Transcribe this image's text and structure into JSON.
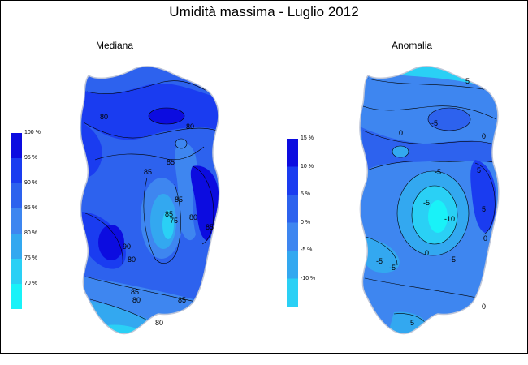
{
  "title": "Umidità massima - Luglio 2012",
  "panels": [
    {
      "subtitle": "Mediana",
      "legend": {
        "labels": [
          "100 %",
          "95 %",
          "90 %",
          "85 %",
          "80 %",
          "75 %",
          "70 %"
        ],
        "colors": [
          "#0c0ce0",
          "#1a3cf0",
          "#2d62ee",
          "#3e86f0",
          "#33a8f0",
          "#2ad0f5",
          "#19f2f8"
        ]
      },
      "contour_labels": [
        "80",
        "80",
        "85",
        "85",
        "85",
        "85",
        "75",
        "80",
        "85",
        "90",
        "80",
        "85",
        "80",
        "85",
        "80"
      ]
    },
    {
      "subtitle": "Anomalia",
      "legend": {
        "labels": [
          "15 %",
          "10 %",
          "5 %",
          "0 %",
          "-5 %",
          "-10 %"
        ],
        "colors": [
          "#0c0ce0",
          "#1a3cf0",
          "#2d62ee",
          "#3e86f0",
          "#33a8f0",
          "#2ad0f5",
          "#19f2f8"
        ]
      },
      "contour_labels": [
        "5",
        "-5",
        "0",
        "0",
        "-5",
        "-5",
        "-10",
        "5",
        "0",
        "5",
        "0",
        "-5",
        "-5",
        "-5",
        "0",
        "5"
      ]
    }
  ]
}
